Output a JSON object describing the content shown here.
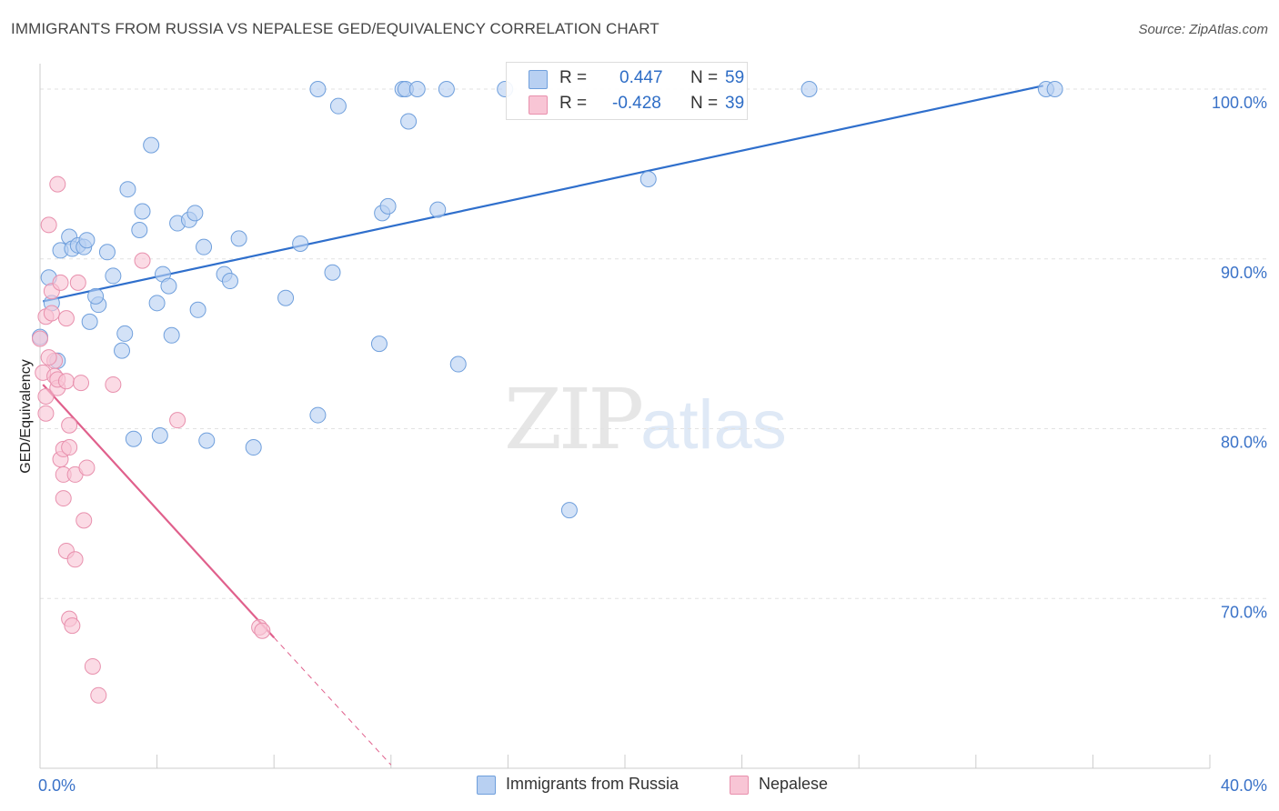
{
  "header": {
    "title": "IMMIGRANTS FROM RUSSIA VS NEPALESE GED/EQUIVALENCY CORRELATION CHART",
    "source": "Source: ZipAtlas.com"
  },
  "watermark": {
    "zip": "ZIP",
    "atlas": "atlas"
  },
  "legend_top": {
    "rows": [
      {
        "r_label": "R =",
        "r_value": "0.447",
        "n_label": "N =",
        "n_value": "59"
      },
      {
        "r_label": "R =",
        "r_value": "-0.428",
        "n_label": "N =",
        "n_value": "39"
      }
    ]
  },
  "legend_bottom": {
    "series_1": "Immigrants from Russia",
    "series_2": "Nepalese"
  },
  "chart_data": {
    "type": "scatter",
    "title": "IMMIGRANTS FROM RUSSIA VS NEPALESE GED/EQUIVALENCY CORRELATION CHART",
    "xlabel": "",
    "ylabel": "GED/Equivalency",
    "xlim": [
      0,
      40
    ],
    "ylim": [
      60,
      101.5
    ],
    "x_tick_labels": [
      {
        "value": 0,
        "label": "0.0%"
      },
      {
        "value": 40,
        "label": "40.0%"
      }
    ],
    "y_tick_labels": [
      {
        "value": 100,
        "label": "100.0%"
      },
      {
        "value": 90,
        "label": "90.0%"
      },
      {
        "value": 80,
        "label": "80.0%"
      },
      {
        "value": 70,
        "label": "70.0%"
      }
    ],
    "grid": true,
    "legend_position": "top-center",
    "colors": {
      "russia_fill": "#b8d0f2",
      "russia_stroke": "#6f9fdc",
      "russia_line": "#2f6fcc",
      "nepal_fill": "#f8c5d5",
      "nepal_stroke": "#e890ad",
      "nepal_line": "#e0608c",
      "axis_text": "#3a72c8"
    },
    "series": [
      {
        "name": "Immigrants from Russia",
        "R": 0.447,
        "N": 59,
        "trend": {
          "x": [
            0.1,
            34.3
          ],
          "y": [
            87.5,
            100.2
          ]
        },
        "points": [
          [
            0.0,
            85.4
          ],
          [
            0.3,
            88.9
          ],
          [
            0.4,
            87.4
          ],
          [
            0.6,
            84.0
          ],
          [
            0.7,
            90.5
          ],
          [
            1.0,
            91.3
          ],
          [
            1.1,
            90.6
          ],
          [
            1.3,
            90.8
          ],
          [
            1.5,
            90.7
          ],
          [
            1.6,
            91.1
          ],
          [
            1.7,
            86.3
          ],
          [
            2.0,
            87.3
          ],
          [
            1.9,
            87.8
          ],
          [
            2.3,
            90.4
          ],
          [
            2.5,
            89.0
          ],
          [
            2.8,
            84.6
          ],
          [
            2.9,
            85.6
          ],
          [
            3.0,
            94.1
          ],
          [
            3.2,
            79.4
          ],
          [
            3.4,
            91.7
          ],
          [
            3.5,
            92.8
          ],
          [
            3.8,
            96.7
          ],
          [
            4.0,
            87.4
          ],
          [
            4.1,
            79.6
          ],
          [
            4.2,
            89.1
          ],
          [
            4.4,
            88.4
          ],
          [
            4.5,
            85.5
          ],
          [
            4.7,
            92.1
          ],
          [
            5.1,
            92.3
          ],
          [
            5.3,
            92.7
          ],
          [
            5.4,
            87.0
          ],
          [
            5.6,
            90.7
          ],
          [
            5.7,
            79.3
          ],
          [
            6.3,
            89.1
          ],
          [
            6.5,
            88.7
          ],
          [
            6.8,
            91.2
          ],
          [
            7.3,
            78.9
          ],
          [
            8.4,
            87.7
          ],
          [
            8.9,
            90.9
          ],
          [
            9.5,
            100.0
          ],
          [
            9.5,
            80.8
          ],
          [
            10.0,
            89.2
          ],
          [
            10.2,
            99.0
          ],
          [
            11.6,
            85.0
          ],
          [
            11.7,
            92.7
          ],
          [
            11.9,
            93.1
          ],
          [
            12.4,
            100.0
          ],
          [
            12.5,
            100.0
          ],
          [
            12.6,
            98.1
          ],
          [
            12.9,
            100.0
          ],
          [
            13.6,
            92.9
          ],
          [
            13.9,
            100.0
          ],
          [
            14.3,
            83.8
          ],
          [
            15.9,
            100.0
          ],
          [
            18.1,
            75.2
          ],
          [
            20.8,
            94.7
          ],
          [
            26.3,
            100.0
          ],
          [
            34.4,
            100.0
          ],
          [
            34.7,
            100.0
          ]
        ]
      },
      {
        "name": "Nepalese",
        "R": -0.428,
        "N": 39,
        "trend": {
          "x": [
            0.1,
            8.0
          ],
          "y": [
            82.6,
            67.7
          ]
        },
        "trend_extension": {
          "x": [
            8.0,
            12.0
          ],
          "y": [
            67.7,
            60.2
          ]
        },
        "points": [
          [
            0.0,
            85.3
          ],
          [
            0.1,
            83.3
          ],
          [
            0.2,
            81.9
          ],
          [
            0.3,
            92.0
          ],
          [
            0.2,
            86.6
          ],
          [
            0.4,
            88.1
          ],
          [
            0.4,
            86.8
          ],
          [
            0.5,
            84.0
          ],
          [
            0.5,
            83.1
          ],
          [
            0.6,
            82.4
          ],
          [
            0.6,
            94.4
          ],
          [
            0.7,
            88.6
          ],
          [
            0.6,
            82.9
          ],
          [
            0.7,
            78.2
          ],
          [
            0.8,
            78.8
          ],
          [
            0.8,
            77.3
          ],
          [
            0.8,
            75.9
          ],
          [
            0.9,
            86.5
          ],
          [
            0.9,
            72.8
          ],
          [
            0.9,
            82.8
          ],
          [
            1.0,
            68.8
          ],
          [
            1.0,
            78.9
          ],
          [
            1.0,
            80.2
          ],
          [
            1.1,
            68.4
          ],
          [
            1.2,
            77.3
          ],
          [
            1.2,
            72.3
          ],
          [
            1.3,
            88.6
          ],
          [
            1.4,
            82.7
          ],
          [
            1.5,
            74.6
          ],
          [
            1.6,
            77.7
          ],
          [
            1.8,
            66.0
          ],
          [
            2.0,
            64.3
          ],
          [
            2.5,
            82.6
          ],
          [
            3.5,
            89.9
          ],
          [
            4.7,
            80.5
          ],
          [
            7.5,
            68.3
          ],
          [
            7.6,
            68.1
          ],
          [
            0.2,
            80.9
          ],
          [
            0.3,
            84.2
          ]
        ]
      }
    ]
  }
}
